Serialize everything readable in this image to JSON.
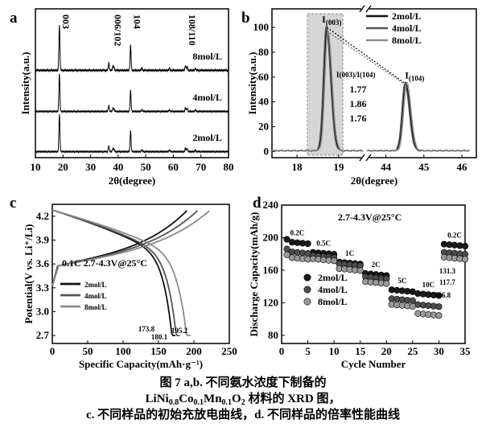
{
  "caption": {
    "line1": "图 7   a,b. 不同氨水浓度下制备的",
    "line2_pre": "LiNi",
    "line2_sub1": "0.8",
    "line2_mid1": "Co",
    "line2_sub2": "0.1",
    "line2_mid2": "Mn",
    "line2_sub3": "0.1",
    "line2_mid3": "O",
    "line2_sub4": "2",
    "line2_post": " 材料的 XRD 图，",
    "line3": "c. 不同样品的初始充放电曲线，d. 不同样品的倍率性能曲线"
  },
  "chart_data": [
    {
      "panel": "a",
      "type": "line",
      "xlabel": "2θ(degree)",
      "ylabel": "Intensity(a.u.)",
      "xlim": [
        10,
        80
      ],
      "xticks": [
        10,
        20,
        30,
        40,
        50,
        60,
        70,
        80
      ],
      "yticks_shown": false,
      "peak_labels": [
        {
          "text": "003",
          "x": 18.7
        },
        {
          "text": "006/102",
          "x": 37.5
        },
        {
          "text": "104",
          "x": 44.5
        },
        {
          "text": "108/110",
          "x": 64.6
        }
      ],
      "peaks": [
        {
          "x": 18.7,
          "rel": 1.0
        },
        {
          "x": 36.6,
          "rel": 0.16
        },
        {
          "x": 38.1,
          "rel": 0.08
        },
        {
          "x": 38.5,
          "rel": 0.06
        },
        {
          "x": 44.5,
          "rel": 0.55
        },
        {
          "x": 48.6,
          "rel": 0.05
        },
        {
          "x": 58.6,
          "rel": 0.04
        },
        {
          "x": 64.4,
          "rel": 0.1
        },
        {
          "x": 65.0,
          "rel": 0.08
        },
        {
          "x": 68.0,
          "rel": 0.04
        }
      ],
      "series": [
        {
          "name": "8mol/L",
          "offset": 2
        },
        {
          "name": "4mol/L",
          "offset": 1
        },
        {
          "name": "2mol/L",
          "offset": 0
        }
      ]
    },
    {
      "panel": "b",
      "type": "line",
      "xlabel": "2θ(degree)",
      "ylabel": "Intensity(a.u.)",
      "ylim": [
        -5,
        115
      ],
      "yticks": [
        0,
        20,
        40,
        60,
        80,
        100
      ],
      "xticks_left": [
        18,
        19
      ],
      "xticks_right": [
        44,
        45,
        46
      ],
      "broken_axis": true,
      "ann_i003": "I",
      "ann_i003_sub": "(003)",
      "ann_i104": "I",
      "ann_i104_sub": "(104)",
      "ratio_label": "I(003)/I(104)",
      "ratio_values": [
        "1.77",
        "1.86",
        "1.76"
      ],
      "series": [
        {
          "name": "2mol/L",
          "peak003": 98,
          "peak104": 55
        },
        {
          "name": "4mol/L",
          "peak003": 100,
          "peak104": 54
        },
        {
          "name": "8mol/L",
          "peak003": 97,
          "peak104": 55
        }
      ]
    },
    {
      "panel": "c",
      "type": "line",
      "xlabel": "Specific Capacity(mAh·g⁻¹)",
      "ylabel": "Potential(V vs. Li⁺/Li)",
      "xlim": [
        0,
        250
      ],
      "ylim": [
        2.6,
        4.35
      ],
      "xticks": [
        0,
        50,
        100,
        150,
        200,
        250
      ],
      "yticks": [
        "2.7",
        "3.0",
        "3.3",
        "3.6",
        "3.9",
        "4.2"
      ],
      "condition": "0.1C  2.7-4.3V@25°C",
      "discharge_capacities": [
        "173.8",
        "180.1",
        "195.2"
      ],
      "series": [
        {
          "name": "2mol/L",
          "charge_cap": 190,
          "discharge_cap": 173.8
        },
        {
          "name": "4mol/L",
          "charge_cap": 205,
          "discharge_cap": 180.1
        },
        {
          "name": "8mol/L",
          "charge_cap": 222,
          "discharge_cap": 195.2
        }
      ]
    },
    {
      "panel": "d",
      "type": "scatter",
      "xlabel": "Cycle Number",
      "ylabel": "Discharge Capacity(mAh/g)",
      "xlim": [
        0,
        35
      ],
      "ylim": [
        70,
        240
      ],
      "xticks": [
        0,
        5,
        10,
        15,
        20,
        25,
        30,
        35
      ],
      "yticks": [
        80,
        120,
        160,
        200,
        240
      ],
      "condition": "2.7-4.3V@25°C",
      "rates": [
        {
          "label": "0.2C",
          "start": 1,
          "end": 5
        },
        {
          "label": "0.5C",
          "start": 6,
          "end": 10
        },
        {
          "label": "1C",
          "start": 11,
          "end": 15
        },
        {
          "label": "2C",
          "start": 16,
          "end": 20
        },
        {
          "label": "5C",
          "start": 21,
          "end": 25
        },
        {
          "label": "10C",
          "start": 26,
          "end": 30
        },
        {
          "label": "0.2C",
          "start": 31,
          "end": 35
        }
      ],
      "value_labels": [
        "131.3",
        "117.7",
        "106.8"
      ],
      "series": [
        {
          "name": "2mol/L",
          "levels": [
            195,
            182,
            170,
            156,
            136,
            131.3,
            192
          ]
        },
        {
          "name": "4mol/L",
          "levels": [
            183,
            178,
            168,
            152,
            125,
            117.7,
            182
          ]
        },
        {
          "name": "8mol/L",
          "levels": [
            176,
            174,
            162,
            146,
            118,
            106.8,
            176
          ]
        }
      ]
    }
  ]
}
